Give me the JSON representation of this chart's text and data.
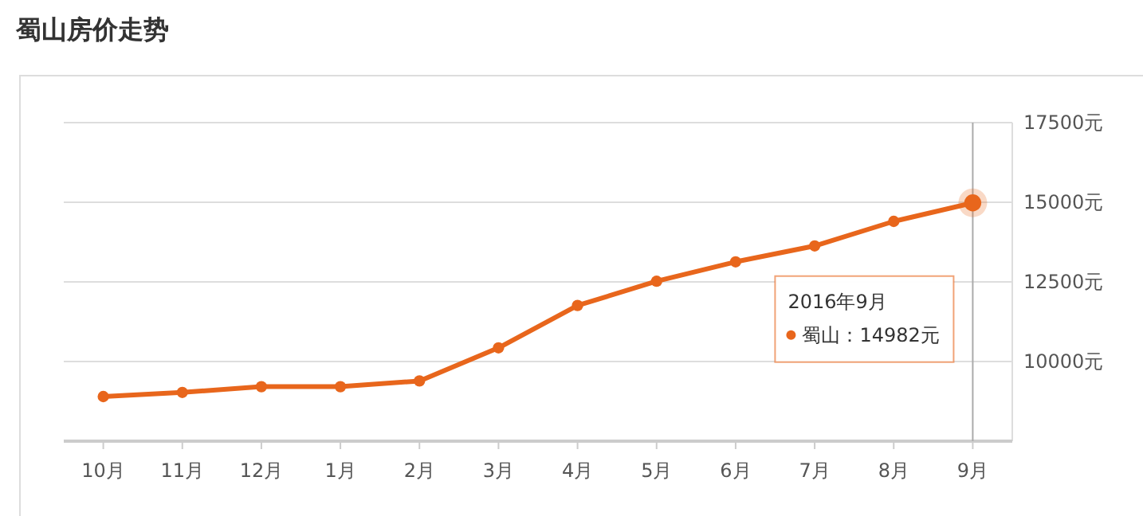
{
  "chart_data": {
    "type": "line",
    "title": "蜀山房价走势",
    "categories": [
      "10月",
      "11月",
      "12月",
      "1月",
      "2月",
      "3月",
      "4月",
      "5月",
      "6月",
      "7月",
      "8月",
      "9月"
    ],
    "series": [
      {
        "color": "#e8661c",
        "values": [
          8900,
          9030,
          9210,
          9210,
          9390,
          10430,
          11760,
          12520,
          13130,
          13630,
          14400,
          14982
        ]
      }
    ],
    "ylim": [
      7500,
      17500
    ],
    "yticks": [
      {
        "value": 10000,
        "label": "10000元"
      },
      {
        "value": 12500,
        "label": "12500元"
      },
      {
        "value": 15000,
        "label": "15000元"
      },
      {
        "value": 17500,
        "label": "17500元"
      }
    ],
    "grid": "y",
    "marker": "circle",
    "line_style": "solid",
    "ref_lines": [
      {
        "axis": "x",
        "value": "9月",
        "color": "#aaaaaa"
      }
    ],
    "annotations": [
      "2016年9月",
      "蜀山：14982元"
    ]
  }
}
